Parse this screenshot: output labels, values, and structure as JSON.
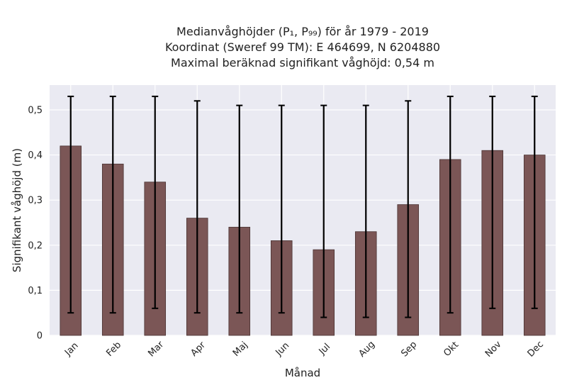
{
  "title": {
    "line1": "Medianvåghöjder (P₁, P₉₉) för år 1979 - 2019",
    "line2": "Koordinat (Sweref 99 TM): E 464699, N 6204880",
    "line3": "Maximal beräknad signifikant våghöjd: 0,54 m"
  },
  "colors": {
    "plot_background": "#eaeaf2",
    "grid": "#ffffff",
    "bar_fill": "#7b5656",
    "bar_edge": "#4a3333",
    "error_bar": "#000000"
  },
  "chart_data": {
    "type": "bar",
    "categories": [
      "Jan",
      "Feb",
      "Mar",
      "Apr",
      "Maj",
      "Jun",
      "Jul",
      "Aug",
      "Sep",
      "Okt",
      "Nov",
      "Dec"
    ],
    "series": [
      {
        "values": [
          0.42,
          0.38,
          0.34,
          0.26,
          0.24,
          0.21,
          0.19,
          0.23,
          0.29,
          0.39,
          0.41,
          0.4
        ],
        "p1": [
          0.05,
          0.05,
          0.06,
          0.05,
          0.05,
          0.05,
          0.04,
          0.04,
          0.04,
          0.05,
          0.06,
          0.06
        ],
        "p99": [
          0.53,
          0.53,
          0.53,
          0.52,
          0.51,
          0.51,
          0.51,
          0.51,
          0.52,
          0.53,
          0.53,
          0.53
        ]
      }
    ],
    "xlabel": "Månad",
    "ylabel": "Signifikant våghöjd (m)",
    "ylim": [
      0,
      0.555
    ],
    "yticks": [
      0,
      0.1,
      0.2,
      0.3,
      0.4,
      0.5
    ],
    "ytick_labels": [
      "0",
      "0,1",
      "0,2",
      "0,3",
      "0,4",
      "0,5"
    ],
    "grid": true,
    "legend": "none"
  }
}
